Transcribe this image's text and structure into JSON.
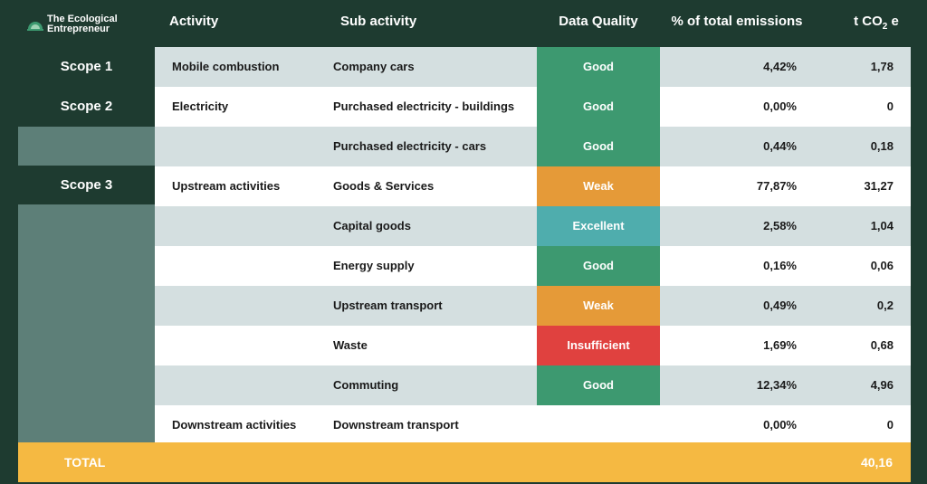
{
  "brand": {
    "line1": "The Ecological",
    "line2": "Entrepreneur",
    "logo": "leaf-dome-icon"
  },
  "headers": {
    "activity": "Activity",
    "sub_activity": "Sub activity",
    "data_quality": "Data Quality",
    "pct": "% of total emissions",
    "tco2_prefix": "t CO",
    "tco2_sub": "2",
    "tco2_suffix": " e"
  },
  "scopes": {
    "scope1": "Scope 1",
    "scope2": "Scope 2",
    "scope3": "Scope 3"
  },
  "colors": {
    "Good": "#3d9970",
    "Weak": "#e59a38",
    "Excellent": "#4fadad",
    "Insufficient": "#e0413f"
  },
  "rows": [
    {
      "activity": "Mobile combustion",
      "sub": "Company cars",
      "quality": "Good",
      "pct": "4,42%",
      "t": "1,78"
    },
    {
      "activity": "Electricity",
      "sub": "Purchased electricity - buildings",
      "quality": "Good",
      "pct": "0,00%",
      "t": "0"
    },
    {
      "activity": "",
      "sub": "Purchased electricity - cars",
      "quality": "Good",
      "pct": "0,44%",
      "t": "0,18"
    },
    {
      "activity": "Upstream activities",
      "sub": "Goods & Services",
      "quality": "Weak",
      "pct": "77,87%",
      "t": "31,27"
    },
    {
      "activity": "",
      "sub": "Capital goods",
      "quality": "Excellent",
      "pct": "2,58%",
      "t": "1,04"
    },
    {
      "activity": "",
      "sub": "Energy supply",
      "quality": "Good",
      "pct": "0,16%",
      "t": "0,06"
    },
    {
      "activity": "",
      "sub": "Upstream transport",
      "quality": "Weak",
      "pct": "0,49%",
      "t": "0,2"
    },
    {
      "activity": "",
      "sub": "Waste",
      "quality": "Insufficient",
      "pct": "1,69%",
      "t": "0,68"
    },
    {
      "activity": "",
      "sub": "Commuting",
      "quality": "Good",
      "pct": "12,34%",
      "t": "4,96"
    },
    {
      "activity": "Downstream activities",
      "sub": "Downstream transport",
      "quality": "",
      "pct": "0,00%",
      "t": "0"
    }
  ],
  "total": {
    "label": "TOTAL",
    "value": "40,16"
  }
}
